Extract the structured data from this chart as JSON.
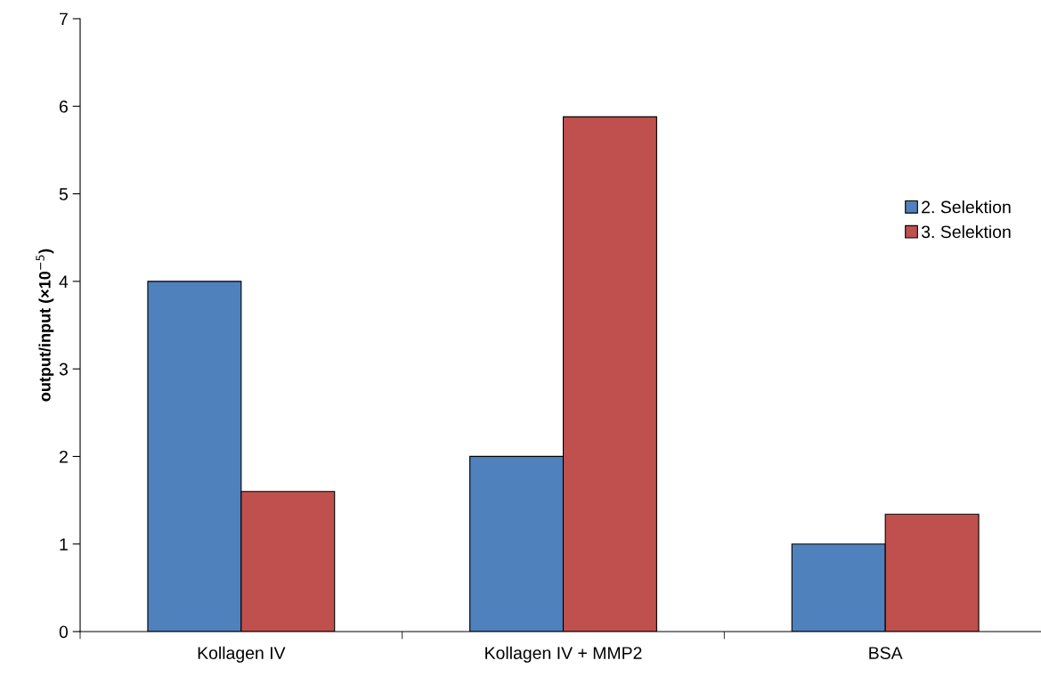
{
  "chart_data": {
    "type": "bar",
    "ylabel": "output/input (×10$^{−5}$)",
    "categories": [
      "Kollagen IV",
      "Kollagen IV + MMP2",
      "BSA"
    ],
    "series": [
      {
        "name": "2. Selektion",
        "color": "#4f81bd",
        "values": [
          4.0,
          2.0,
          1.0
        ]
      },
      {
        "name": "3. Selektion",
        "color": "#c0504d",
        "values": [
          1.6,
          5.88,
          1.34
        ]
      }
    ],
    "ylim": [
      0,
      7
    ],
    "yticks": [
      0,
      1,
      2,
      3,
      4,
      5,
      6,
      7
    ],
    "grid": false,
    "legend": "right"
  }
}
